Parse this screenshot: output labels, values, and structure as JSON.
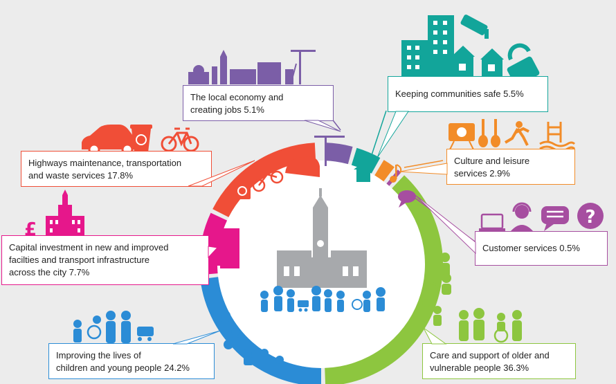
{
  "segments": [
    {
      "key": "care",
      "line1": "Care and support of older and",
      "line2": "vulnerable people 36.3%",
      "color": "#8dc63f",
      "percent": 36.3
    },
    {
      "key": "children",
      "line1": "Improving the lives of",
      "line2": "children and young people 24.2%",
      "color": "#2b8cd6",
      "percent": 24.2
    },
    {
      "key": "highways",
      "line1": "Highways maintenance, transportation",
      "line2": "and waste services 17.8%",
      "color": "#f04e37",
      "percent": 17.8
    },
    {
      "key": "capital",
      "line1": "Capital investment in new and improved",
      "line2": "facilties and transport infrastructure",
      "line3": "across the city 7.7%",
      "color": "#e6178b",
      "percent": 7.7
    },
    {
      "key": "economy",
      "line1": "The local economy and",
      "line2": "creating jobs 5.1%",
      "color": "#7b5ea7",
      "percent": 5.1
    },
    {
      "key": "safe",
      "line1": "Keeping communities safe 5.5%",
      "color": "#12a59a",
      "percent": 5.5
    },
    {
      "key": "culture",
      "line1": "Culture and leisure",
      "line2": "services 2.9%",
      "color": "#f28c28",
      "percent": 2.9
    },
    {
      "key": "customer",
      "line1": "Customer services 0.5%",
      "color": "#a64ea0",
      "percent": 0.5
    }
  ],
  "icons": {
    "pound_symbol": "£",
    "question_symbol": "?"
  }
}
